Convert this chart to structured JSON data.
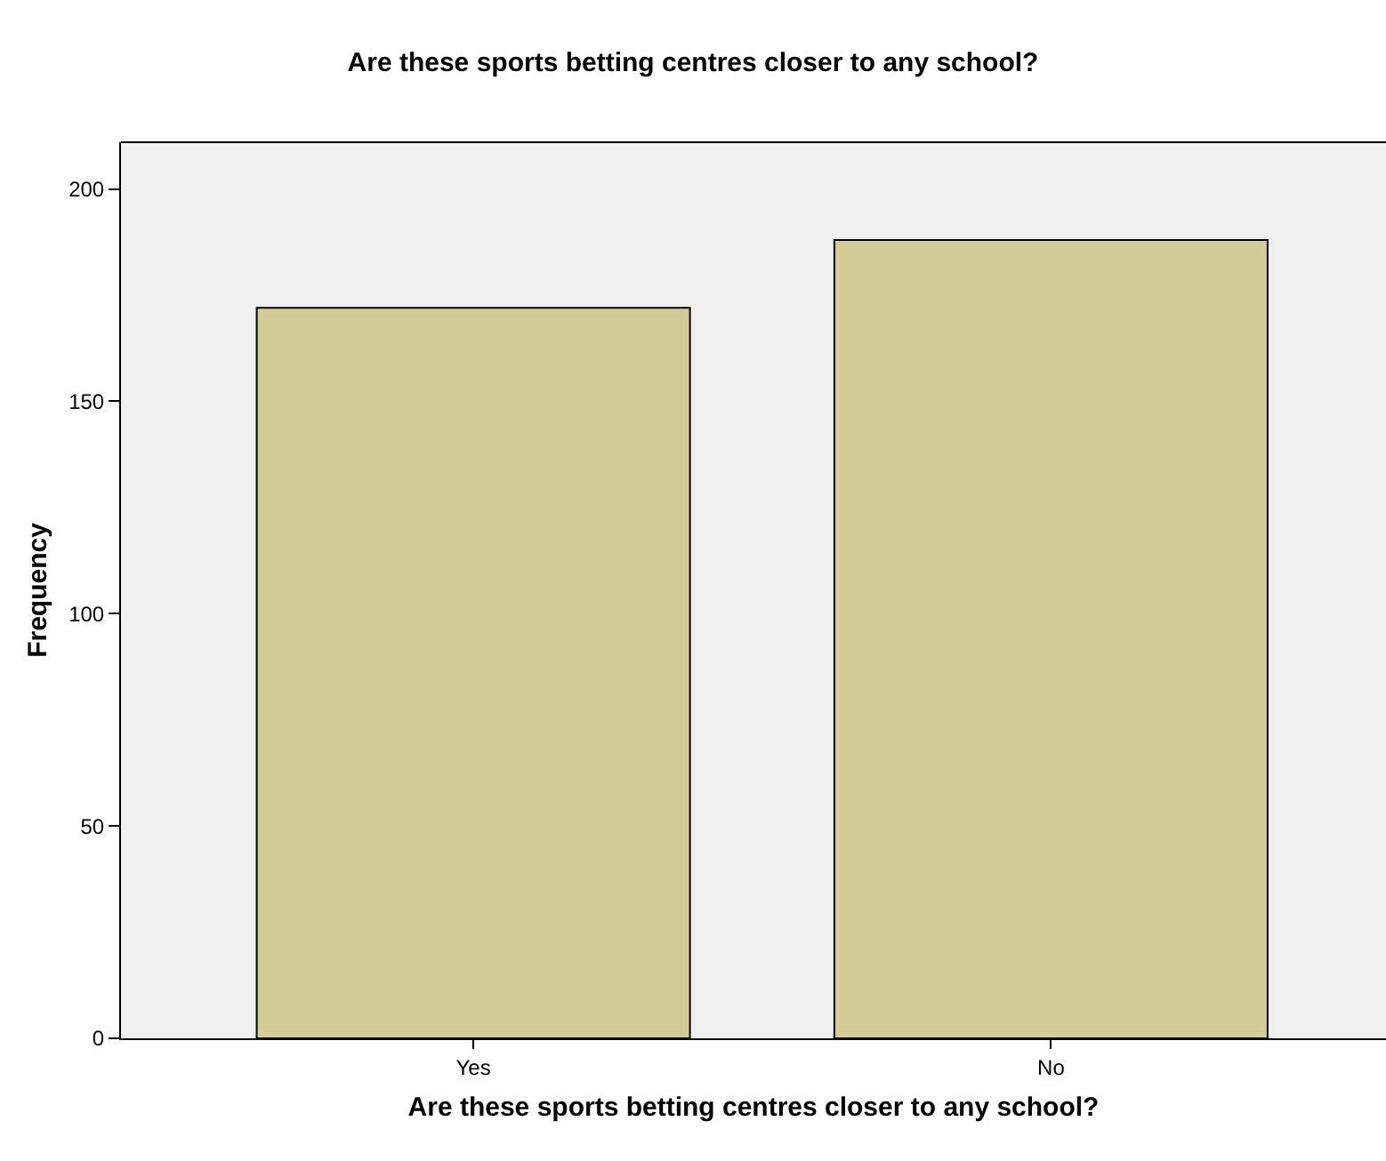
{
  "chart_data": {
    "type": "bar",
    "title": "Are these sports betting centres closer to any school?",
    "xlabel": "Are these sports betting centres closer to any school?",
    "ylabel": "Frequency",
    "categories": [
      "Yes",
      "No"
    ],
    "values": [
      172,
      188
    ],
    "color": "#d2cc96",
    "ylim": [
      0,
      211
    ],
    "yticks": [
      0,
      50,
      100,
      150,
      200
    ],
    "grid": false,
    "legend": false
  }
}
